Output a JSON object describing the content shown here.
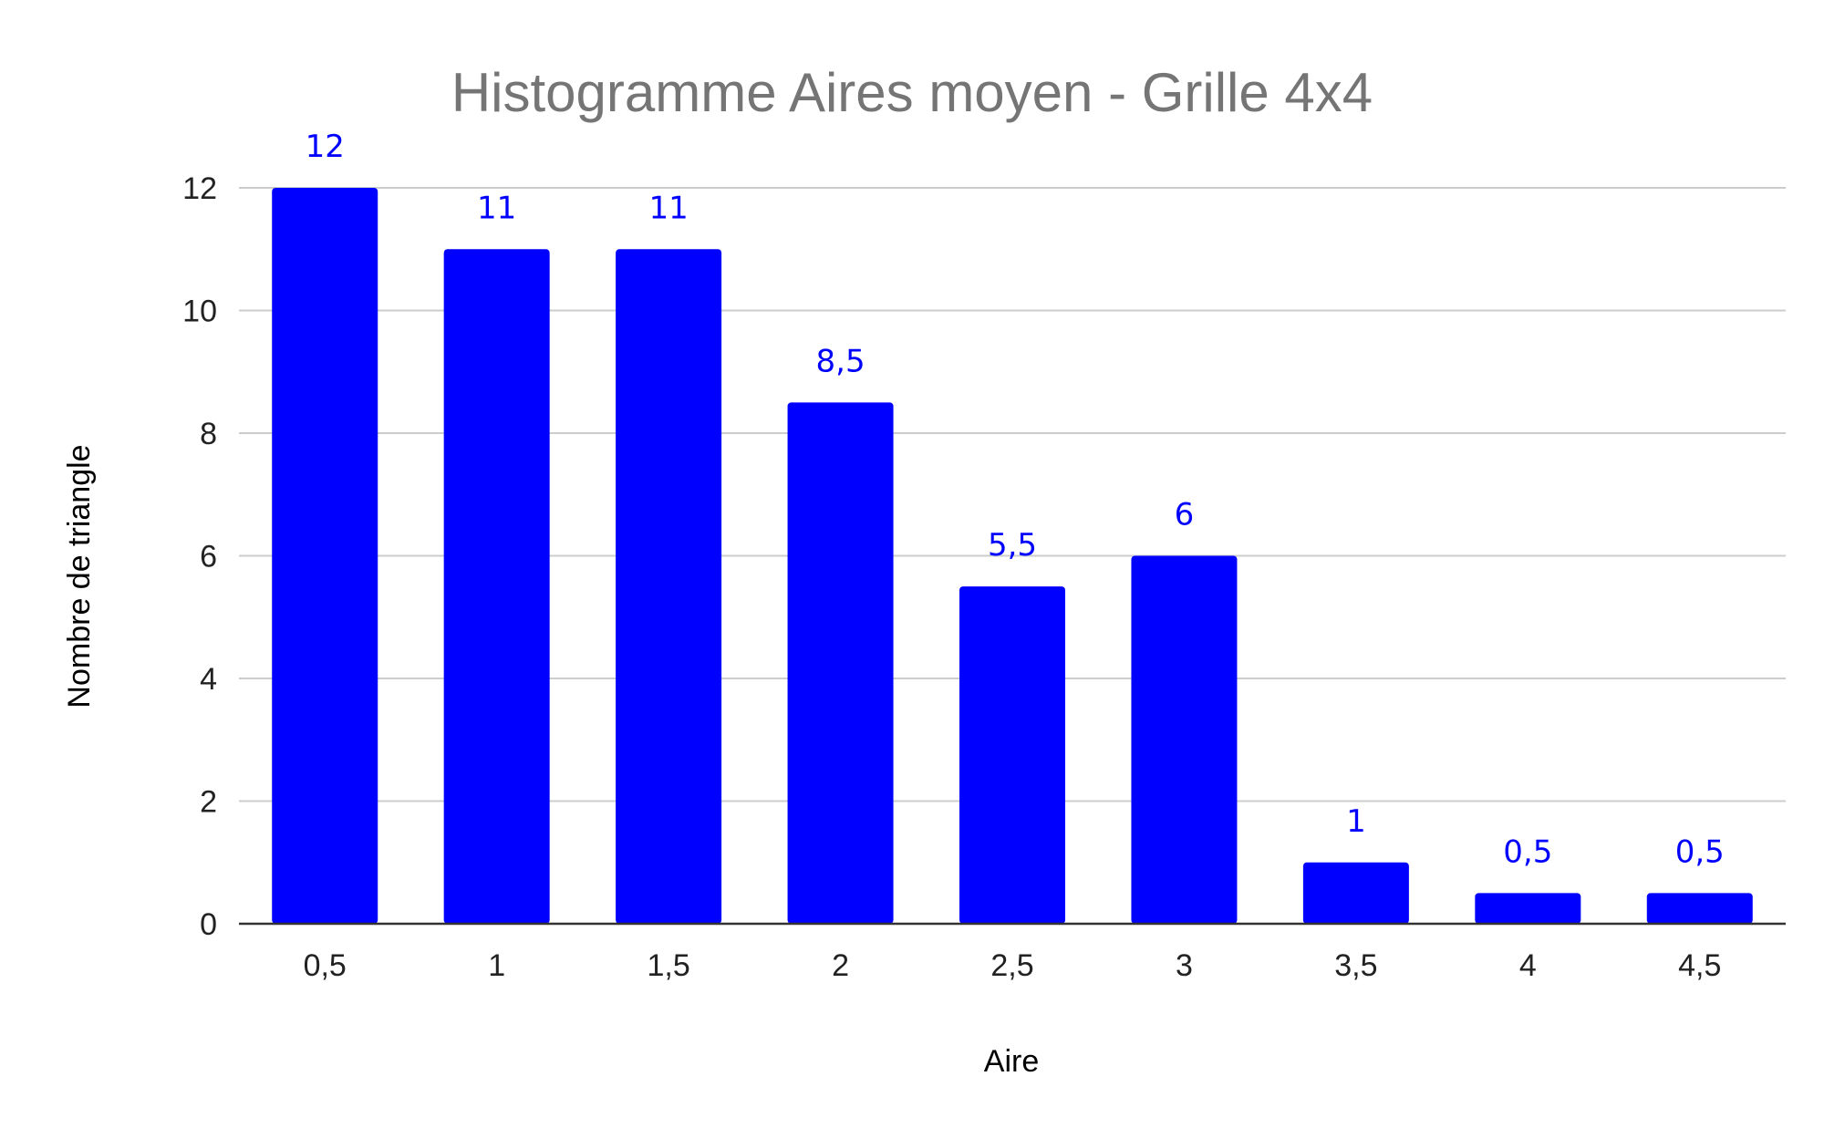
{
  "chart_data": {
    "type": "bar",
    "title": "Histogramme Aires moyen - Grille 4x4",
    "xlabel": "Aire",
    "ylabel": "Nombre de triangle",
    "categories": [
      "0,5",
      "1",
      "1,5",
      "2",
      "2,5",
      "3",
      "3,5",
      "4",
      "4,5"
    ],
    "values": [
      12,
      11,
      11,
      8.5,
      5.5,
      6,
      1,
      0.5,
      0.5
    ],
    "data_labels": [
      "12",
      "11",
      "11",
      "8,5",
      "5,5",
      "6",
      "1",
      "0,5",
      "0,5"
    ],
    "y_ticks": [
      "0",
      "2",
      "4",
      "6",
      "8",
      "10",
      "12"
    ],
    "ylim": [
      0,
      12
    ],
    "grid": true,
    "legend": "none",
    "colors": {
      "bar": "#0000ff",
      "data_label": "#0000ff",
      "title": "#757575",
      "grid": "#cccccc"
    }
  }
}
